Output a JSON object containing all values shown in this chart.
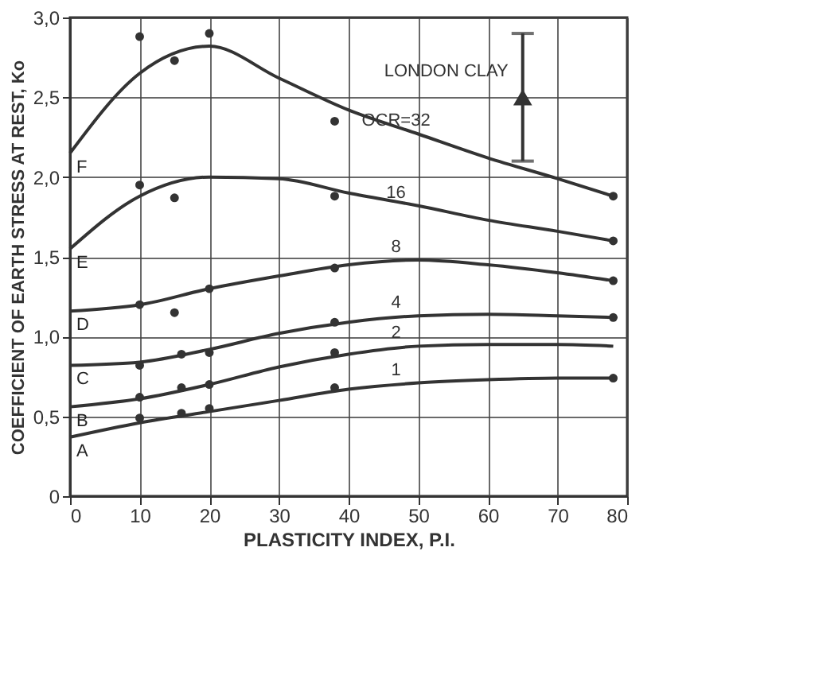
{
  "chart_data": {
    "type": "line",
    "xlabel": "PLASTICITY INDEX, P.I.",
    "ylabel": "COEFFICIENT OF EARTH STRESS AT REST, Ko",
    "xlim": [
      0,
      80
    ],
    "xticks": [
      0,
      10,
      20,
      30,
      40,
      50,
      60,
      70,
      80
    ],
    "ylim": [
      0,
      3
    ],
    "yticks": [
      {
        "value": 0,
        "label": "0"
      },
      {
        "value": 0.5,
        "label": "0,5"
      },
      {
        "value": 1,
        "label": "1,0"
      },
      {
        "value": 1.5,
        "label": "1,5"
      },
      {
        "value": 2,
        "label": "2,0"
      },
      {
        "value": 2.5,
        "label": "2,5"
      },
      {
        "value": 3,
        "label": "3,0"
      }
    ],
    "grid": true,
    "line_style": "solid",
    "series": [
      {
        "name": "OCR=32",
        "color": "#333333",
        "marker": "none",
        "x": [
          0,
          10,
          20,
          30,
          40,
          50,
          60,
          70,
          78
        ],
        "values": [
          2.15,
          2.65,
          2.82,
          2.62,
          2.42,
          2.27,
          2.12,
          1.99,
          1.88
        ]
      },
      {
        "name": "16",
        "color": "#333333",
        "marker": "none",
        "x": [
          0,
          10,
          20,
          30,
          40,
          50,
          60,
          70,
          78
        ],
        "values": [
          1.55,
          1.88,
          2.0,
          1.99,
          1.9,
          1.82,
          1.73,
          1.66,
          1.6
        ]
      },
      {
        "name": "8",
        "color": "#333333",
        "marker": "none",
        "x": [
          0,
          10,
          20,
          30,
          40,
          50,
          60,
          70,
          78
        ],
        "values": [
          1.16,
          1.2,
          1.3,
          1.38,
          1.45,
          1.48,
          1.45,
          1.4,
          1.35
        ]
      },
      {
        "name": "4",
        "color": "#333333",
        "marker": "none",
        "x": [
          0,
          10,
          20,
          30,
          40,
          50,
          60,
          70,
          78
        ],
        "values": [
          0.82,
          0.84,
          0.92,
          1.02,
          1.09,
          1.13,
          1.14,
          1.13,
          1.12
        ]
      },
      {
        "name": "2",
        "color": "#333333",
        "marker": "none",
        "x": [
          0,
          10,
          20,
          30,
          40,
          50,
          60,
          70,
          78
        ],
        "values": [
          0.56,
          0.61,
          0.7,
          0.81,
          0.89,
          0.94,
          0.95,
          0.95,
          0.94
        ]
      },
      {
        "name": "1",
        "color": "#333333",
        "marker": "none",
        "x": [
          0,
          10,
          20,
          30,
          40,
          50,
          60,
          70,
          78
        ],
        "values": [
          0.37,
          0.46,
          0.53,
          0.6,
          0.67,
          0.71,
          0.73,
          0.74,
          0.74
        ]
      },
      {
        "type": "scatter",
        "color": "#333333",
        "marker": "circle",
        "x": [
          10,
          15,
          20,
          38,
          78,
          10,
          15,
          38,
          78,
          10,
          15,
          20,
          38,
          78,
          10,
          16,
          20,
          38,
          78,
          10,
          16,
          20,
          38,
          10,
          16,
          20,
          38,
          78
        ],
        "values": [
          2.88,
          2.73,
          2.9,
          2.35,
          1.88,
          1.95,
          1.87,
          1.88,
          1.6,
          1.2,
          1.15,
          1.3,
          1.43,
          1.35,
          0.82,
          0.89,
          0.9,
          1.09,
          1.12,
          0.62,
          0.68,
          0.7,
          0.9,
          0.49,
          0.52,
          0.55,
          0.68,
          0.74
        ]
      },
      {
        "type": "scatter",
        "name": "LONDON CLAY",
        "color": "#333333",
        "marker": "triangle",
        "x": [
          65
        ],
        "values": [
          2.5
        ],
        "errors": [
          [
            2.1,
            2.9
          ]
        ]
      }
    ],
    "annotations": [
      "F",
      "E",
      "D",
      "C",
      "B",
      "A"
    ]
  }
}
